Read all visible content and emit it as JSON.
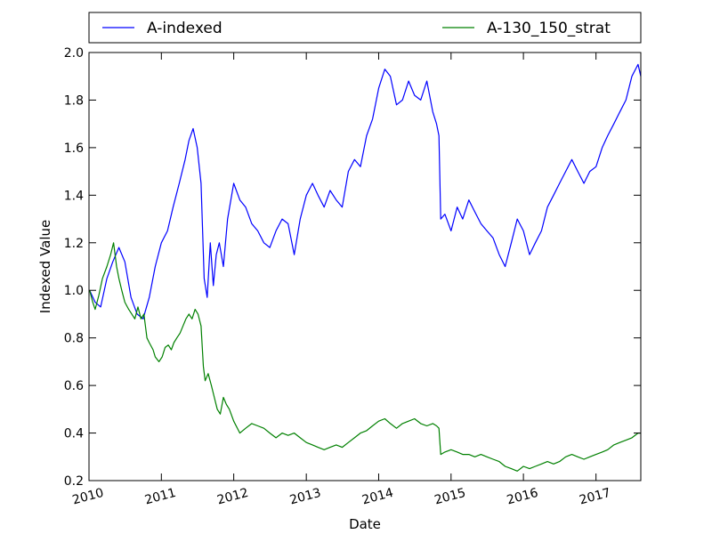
{
  "chart_data": {
    "type": "line",
    "title": "",
    "xlabel": "Date",
    "ylabel": "Indexed Value",
    "xlim": [
      "2010-01-01",
      "2017-08-15"
    ],
    "ylim": [
      0.2,
      2.0
    ],
    "x_ticks": [
      "2010",
      "2011",
      "2012",
      "2013",
      "2014",
      "2015",
      "2016",
      "2017"
    ],
    "y_ticks": [
      "0.2",
      "0.4",
      "0.6",
      "0.8",
      "1.0",
      "1.2",
      "1.4",
      "1.6",
      "1.8",
      "2.0"
    ],
    "grid": false,
    "legend_position": "top, above plot",
    "series": [
      {
        "name": "A-indexed",
        "color": "#0000ff",
        "x": [
          "2010-01-04",
          "2010-02-01",
          "2010-03-01",
          "2010-04-01",
          "2010-05-01",
          "2010-06-01",
          "2010-07-01",
          "2010-08-01",
          "2010-09-01",
          "2010-10-01",
          "2010-11-01",
          "2010-12-01",
          "2011-01-01",
          "2011-02-01",
          "2011-03-01",
          "2011-04-01",
          "2011-05-01",
          "2011-05-20",
          "2011-06-10",
          "2011-07-01",
          "2011-07-20",
          "2011-08-05",
          "2011-08-20",
          "2011-09-05",
          "2011-09-20",
          "2011-10-05",
          "2011-10-20",
          "2011-11-10",
          "2011-12-01",
          "2012-01-01",
          "2012-02-01",
          "2012-03-01",
          "2012-04-01",
          "2012-05-01",
          "2012-06-01",
          "2012-07-01",
          "2012-08-01",
          "2012-09-01",
          "2012-10-01",
          "2012-11-01",
          "2012-12-01",
          "2013-01-01",
          "2013-02-01",
          "2013-03-01",
          "2013-04-01",
          "2013-05-01",
          "2013-06-01",
          "2013-07-01",
          "2013-08-01",
          "2013-09-01",
          "2013-10-01",
          "2013-11-01",
          "2013-12-01",
          "2014-01-01",
          "2014-02-01",
          "2014-03-01",
          "2014-04-01",
          "2014-05-01",
          "2014-06-01",
          "2014-07-01",
          "2014-08-01",
          "2014-09-01",
          "2014-10-01",
          "2014-10-20",
          "2014-11-01",
          "2014-11-10",
          "2014-12-01",
          "2015-01-01",
          "2015-02-01",
          "2015-03-01",
          "2015-04-01",
          "2015-05-01",
          "2015-06-01",
          "2015-07-01",
          "2015-08-01",
          "2015-09-01",
          "2015-10-01",
          "2015-11-01",
          "2015-12-01",
          "2016-01-01",
          "2016-02-01",
          "2016-03-01",
          "2016-04-01",
          "2016-05-01",
          "2016-06-01",
          "2016-07-01",
          "2016-08-01",
          "2016-09-01",
          "2016-10-01",
          "2016-11-01",
          "2016-12-01",
          "2017-01-01",
          "2017-02-01",
          "2017-03-01",
          "2017-04-01",
          "2017-05-01",
          "2017-06-01",
          "2017-07-01",
          "2017-08-01",
          "2017-08-15"
        ],
        "y": [
          1.0,
          0.95,
          0.93,
          1.05,
          1.12,
          1.18,
          1.12,
          0.97,
          0.9,
          0.88,
          0.97,
          1.1,
          1.2,
          1.25,
          1.35,
          1.45,
          1.55,
          1.63,
          1.68,
          1.6,
          1.45,
          1.05,
          0.97,
          1.2,
          1.02,
          1.15,
          1.2,
          1.1,
          1.3,
          1.45,
          1.38,
          1.35,
          1.28,
          1.25,
          1.2,
          1.18,
          1.25,
          1.3,
          1.28,
          1.15,
          1.3,
          1.4,
          1.45,
          1.4,
          1.35,
          1.42,
          1.38,
          1.35,
          1.5,
          1.55,
          1.52,
          1.65,
          1.72,
          1.85,
          1.93,
          1.9,
          1.78,
          1.8,
          1.88,
          1.82,
          1.8,
          1.88,
          1.75,
          1.7,
          1.65,
          1.3,
          1.32,
          1.25,
          1.35,
          1.3,
          1.38,
          1.33,
          1.28,
          1.25,
          1.22,
          1.15,
          1.1,
          1.2,
          1.3,
          1.25,
          1.15,
          1.2,
          1.25,
          1.35,
          1.4,
          1.45,
          1.5,
          1.55,
          1.5,
          1.45,
          1.5,
          1.52,
          1.6,
          1.65,
          1.7,
          1.75,
          1.8,
          1.9,
          1.95,
          1.9
        ]
      },
      {
        "name": "A-130_150_strat",
        "color": "#008000",
        "x": [
          "2010-01-04",
          "2010-01-20",
          "2010-02-01",
          "2010-02-20",
          "2010-03-10",
          "2010-04-01",
          "2010-04-20",
          "2010-05-05",
          "2010-05-20",
          "2010-06-01",
          "2010-06-15",
          "2010-07-01",
          "2010-07-20",
          "2010-08-05",
          "2010-08-20",
          "2010-09-05",
          "2010-09-20",
          "2010-10-05",
          "2010-10-20",
          "2010-11-01",
          "2010-11-20",
          "2010-12-01",
          "2010-12-20",
          "2011-01-05",
          "2011-01-20",
          "2011-02-05",
          "2011-02-20",
          "2011-03-05",
          "2011-03-20",
          "2011-04-05",
          "2011-04-20",
          "2011-05-05",
          "2011-05-20",
          "2011-06-05",
          "2011-06-20",
          "2011-07-05",
          "2011-07-20",
          "2011-08-01",
          "2011-08-10",
          "2011-08-25",
          "2011-09-10",
          "2011-09-25",
          "2011-10-10",
          "2011-10-25",
          "2011-11-10",
          "2011-11-25",
          "2011-12-10",
          "2012-01-01",
          "2012-02-01",
          "2012-03-01",
          "2012-04-01",
          "2012-05-01",
          "2012-06-01",
          "2012-07-01",
          "2012-08-01",
          "2012-09-01",
          "2012-10-01",
          "2012-11-01",
          "2012-12-01",
          "2013-01-01",
          "2013-02-01",
          "2013-03-01",
          "2013-04-01",
          "2013-05-01",
          "2013-06-01",
          "2013-07-01",
          "2013-08-01",
          "2013-09-01",
          "2013-10-01",
          "2013-11-01",
          "2013-12-01",
          "2014-01-01",
          "2014-02-01",
          "2014-03-01",
          "2014-04-01",
          "2014-05-01",
          "2014-06-01",
          "2014-07-01",
          "2014-08-01",
          "2014-09-01",
          "2014-10-01",
          "2014-10-20",
          "2014-11-01",
          "2014-11-10",
          "2014-12-01",
          "2015-01-01",
          "2015-02-01",
          "2015-03-01",
          "2015-04-01",
          "2015-05-01",
          "2015-06-01",
          "2015-07-01",
          "2015-08-01",
          "2015-09-01",
          "2015-10-01",
          "2015-11-01",
          "2015-12-01",
          "2016-01-01",
          "2016-02-01",
          "2016-03-01",
          "2016-04-01",
          "2016-05-01",
          "2016-06-01",
          "2016-07-01",
          "2016-08-01",
          "2016-09-01",
          "2016-10-01",
          "2016-11-01",
          "2016-12-01",
          "2017-01-01",
          "2017-02-01",
          "2017-03-01",
          "2017-04-01",
          "2017-05-01",
          "2017-06-01",
          "2017-07-01",
          "2017-08-01",
          "2017-08-15"
        ],
        "y": [
          1.0,
          0.95,
          0.92,
          0.98,
          1.05,
          1.1,
          1.15,
          1.2,
          1.1,
          1.05,
          1.0,
          0.95,
          0.92,
          0.9,
          0.88,
          0.93,
          0.88,
          0.9,
          0.8,
          0.78,
          0.75,
          0.72,
          0.7,
          0.72,
          0.76,
          0.77,
          0.75,
          0.78,
          0.8,
          0.82,
          0.85,
          0.88,
          0.9,
          0.88,
          0.92,
          0.9,
          0.85,
          0.68,
          0.62,
          0.65,
          0.6,
          0.55,
          0.5,
          0.48,
          0.55,
          0.52,
          0.5,
          0.45,
          0.4,
          0.42,
          0.44,
          0.43,
          0.42,
          0.4,
          0.38,
          0.4,
          0.39,
          0.4,
          0.38,
          0.36,
          0.35,
          0.34,
          0.33,
          0.34,
          0.35,
          0.34,
          0.36,
          0.38,
          0.4,
          0.41,
          0.43,
          0.45,
          0.46,
          0.44,
          0.42,
          0.44,
          0.45,
          0.46,
          0.44,
          0.43,
          0.44,
          0.43,
          0.42,
          0.31,
          0.32,
          0.33,
          0.32,
          0.31,
          0.31,
          0.3,
          0.31,
          0.3,
          0.29,
          0.28,
          0.26,
          0.25,
          0.24,
          0.26,
          0.25,
          0.26,
          0.27,
          0.28,
          0.27,
          0.28,
          0.3,
          0.31,
          0.3,
          0.29,
          0.3,
          0.31,
          0.32,
          0.33,
          0.35,
          0.36,
          0.37,
          0.38,
          0.4,
          0.4
        ]
      }
    ]
  }
}
